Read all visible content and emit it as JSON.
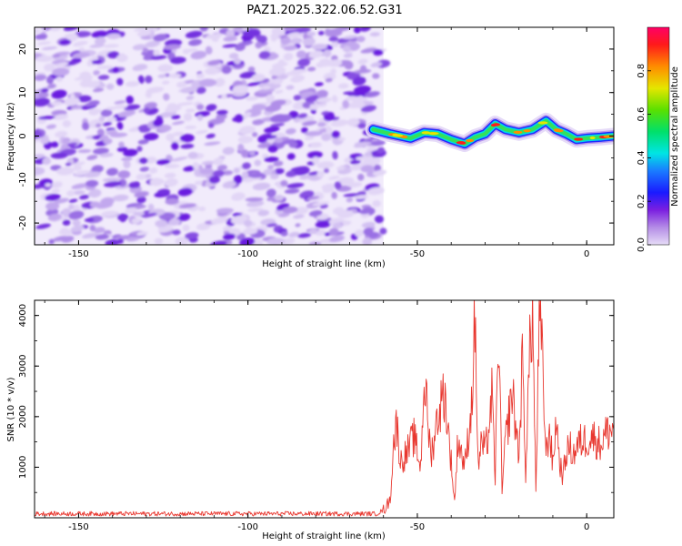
{
  "title": "PAZ1.2025.322.06.52.G31",
  "chart_data": [
    {
      "type": "heatmap",
      "xlabel": "Height of straight line (km)",
      "ylabel": "Frequency (Hz)",
      "xlim": [
        -163,
        8
      ],
      "ylim": [
        -25,
        25
      ],
      "xticks": [
        -150,
        -100,
        -50,
        0
      ],
      "yticks": [
        -20,
        -10,
        0,
        10,
        20
      ],
      "noise_region_x": [
        -163,
        -60
      ],
      "signal_track": {
        "x": [
          -63,
          -58,
          -55,
          -52,
          -48,
          -44,
          -40,
          -36,
          -33,
          -30,
          -27,
          -24,
          -20,
          -16,
          -12,
          -9,
          -6,
          -3,
          0,
          4,
          8
        ],
        "frequency": [
          1.5,
          0.5,
          0,
          -0.5,
          0.8,
          0.5,
          -0.8,
          -1.8,
          -0.3,
          0.5,
          2.8,
          1.5,
          0.8,
          1.5,
          3.5,
          1.5,
          0.5,
          -0.8,
          -0.5,
          -0.3,
          0
        ]
      },
      "colorbar": {
        "label": "Normalized spectral amplitude",
        "range": [
          0,
          1
        ],
        "ticks": [
          0,
          0.2,
          0.4,
          0.6,
          0.8
        ],
        "tick_labels": [
          "0.0",
          "0.2",
          "0.4",
          "0.6",
          "0.8"
        ]
      }
    },
    {
      "type": "line",
      "xlabel": "Height of straight line (km)",
      "ylabel": "SNR (10 * v/v)",
      "xlim": [
        -163,
        8
      ],
      "ylim": [
        0,
        4300
      ],
      "xticks": [
        -150,
        -100,
        -50,
        0
      ],
      "yticks": [
        1000,
        2000,
        3000,
        4000
      ],
      "color": "#e8372f",
      "series": [
        {
          "name": "SNR",
          "x": [
            -163,
            -150,
            -130,
            -110,
            -90,
            -70,
            -62,
            -60,
            -58,
            -57,
            -56,
            -55,
            -53,
            -51,
            -49,
            -48,
            -46,
            -44,
            -42,
            -40,
            -39,
            -38,
            -36,
            -34,
            -33,
            -32,
            -31,
            -30,
            -29,
            -28,
            -27,
            -26,
            -25,
            -24,
            -22,
            -20,
            -19,
            -18,
            -17,
            -16,
            -15,
            -14,
            -13,
            -12,
            -11,
            -10,
            -9,
            -8,
            -7,
            -6,
            -5,
            -4,
            -2,
            0,
            2,
            4,
            6,
            8
          ],
          "values": [
            80,
            80,
            80,
            80,
            80,
            80,
            80,
            150,
            350,
            1500,
            1850,
            1100,
            1300,
            1600,
            1000,
            2800,
            1200,
            2000,
            2500,
            1100,
            300,
            1600,
            1000,
            2200,
            3900,
            1000,
            1500,
            1300,
            1700,
            2400,
            800,
            3800,
            500,
            1500,
            2500,
            1200,
            3100,
            900,
            3000,
            4150,
            500,
            3900,
            3000,
            1200,
            1800,
            1000,
            2000,
            1100,
            800,
            1300,
            1400,
            1250,
            1500,
            1550,
            1600,
            1450,
            1700,
            1750
          ]
        }
      ]
    }
  ]
}
